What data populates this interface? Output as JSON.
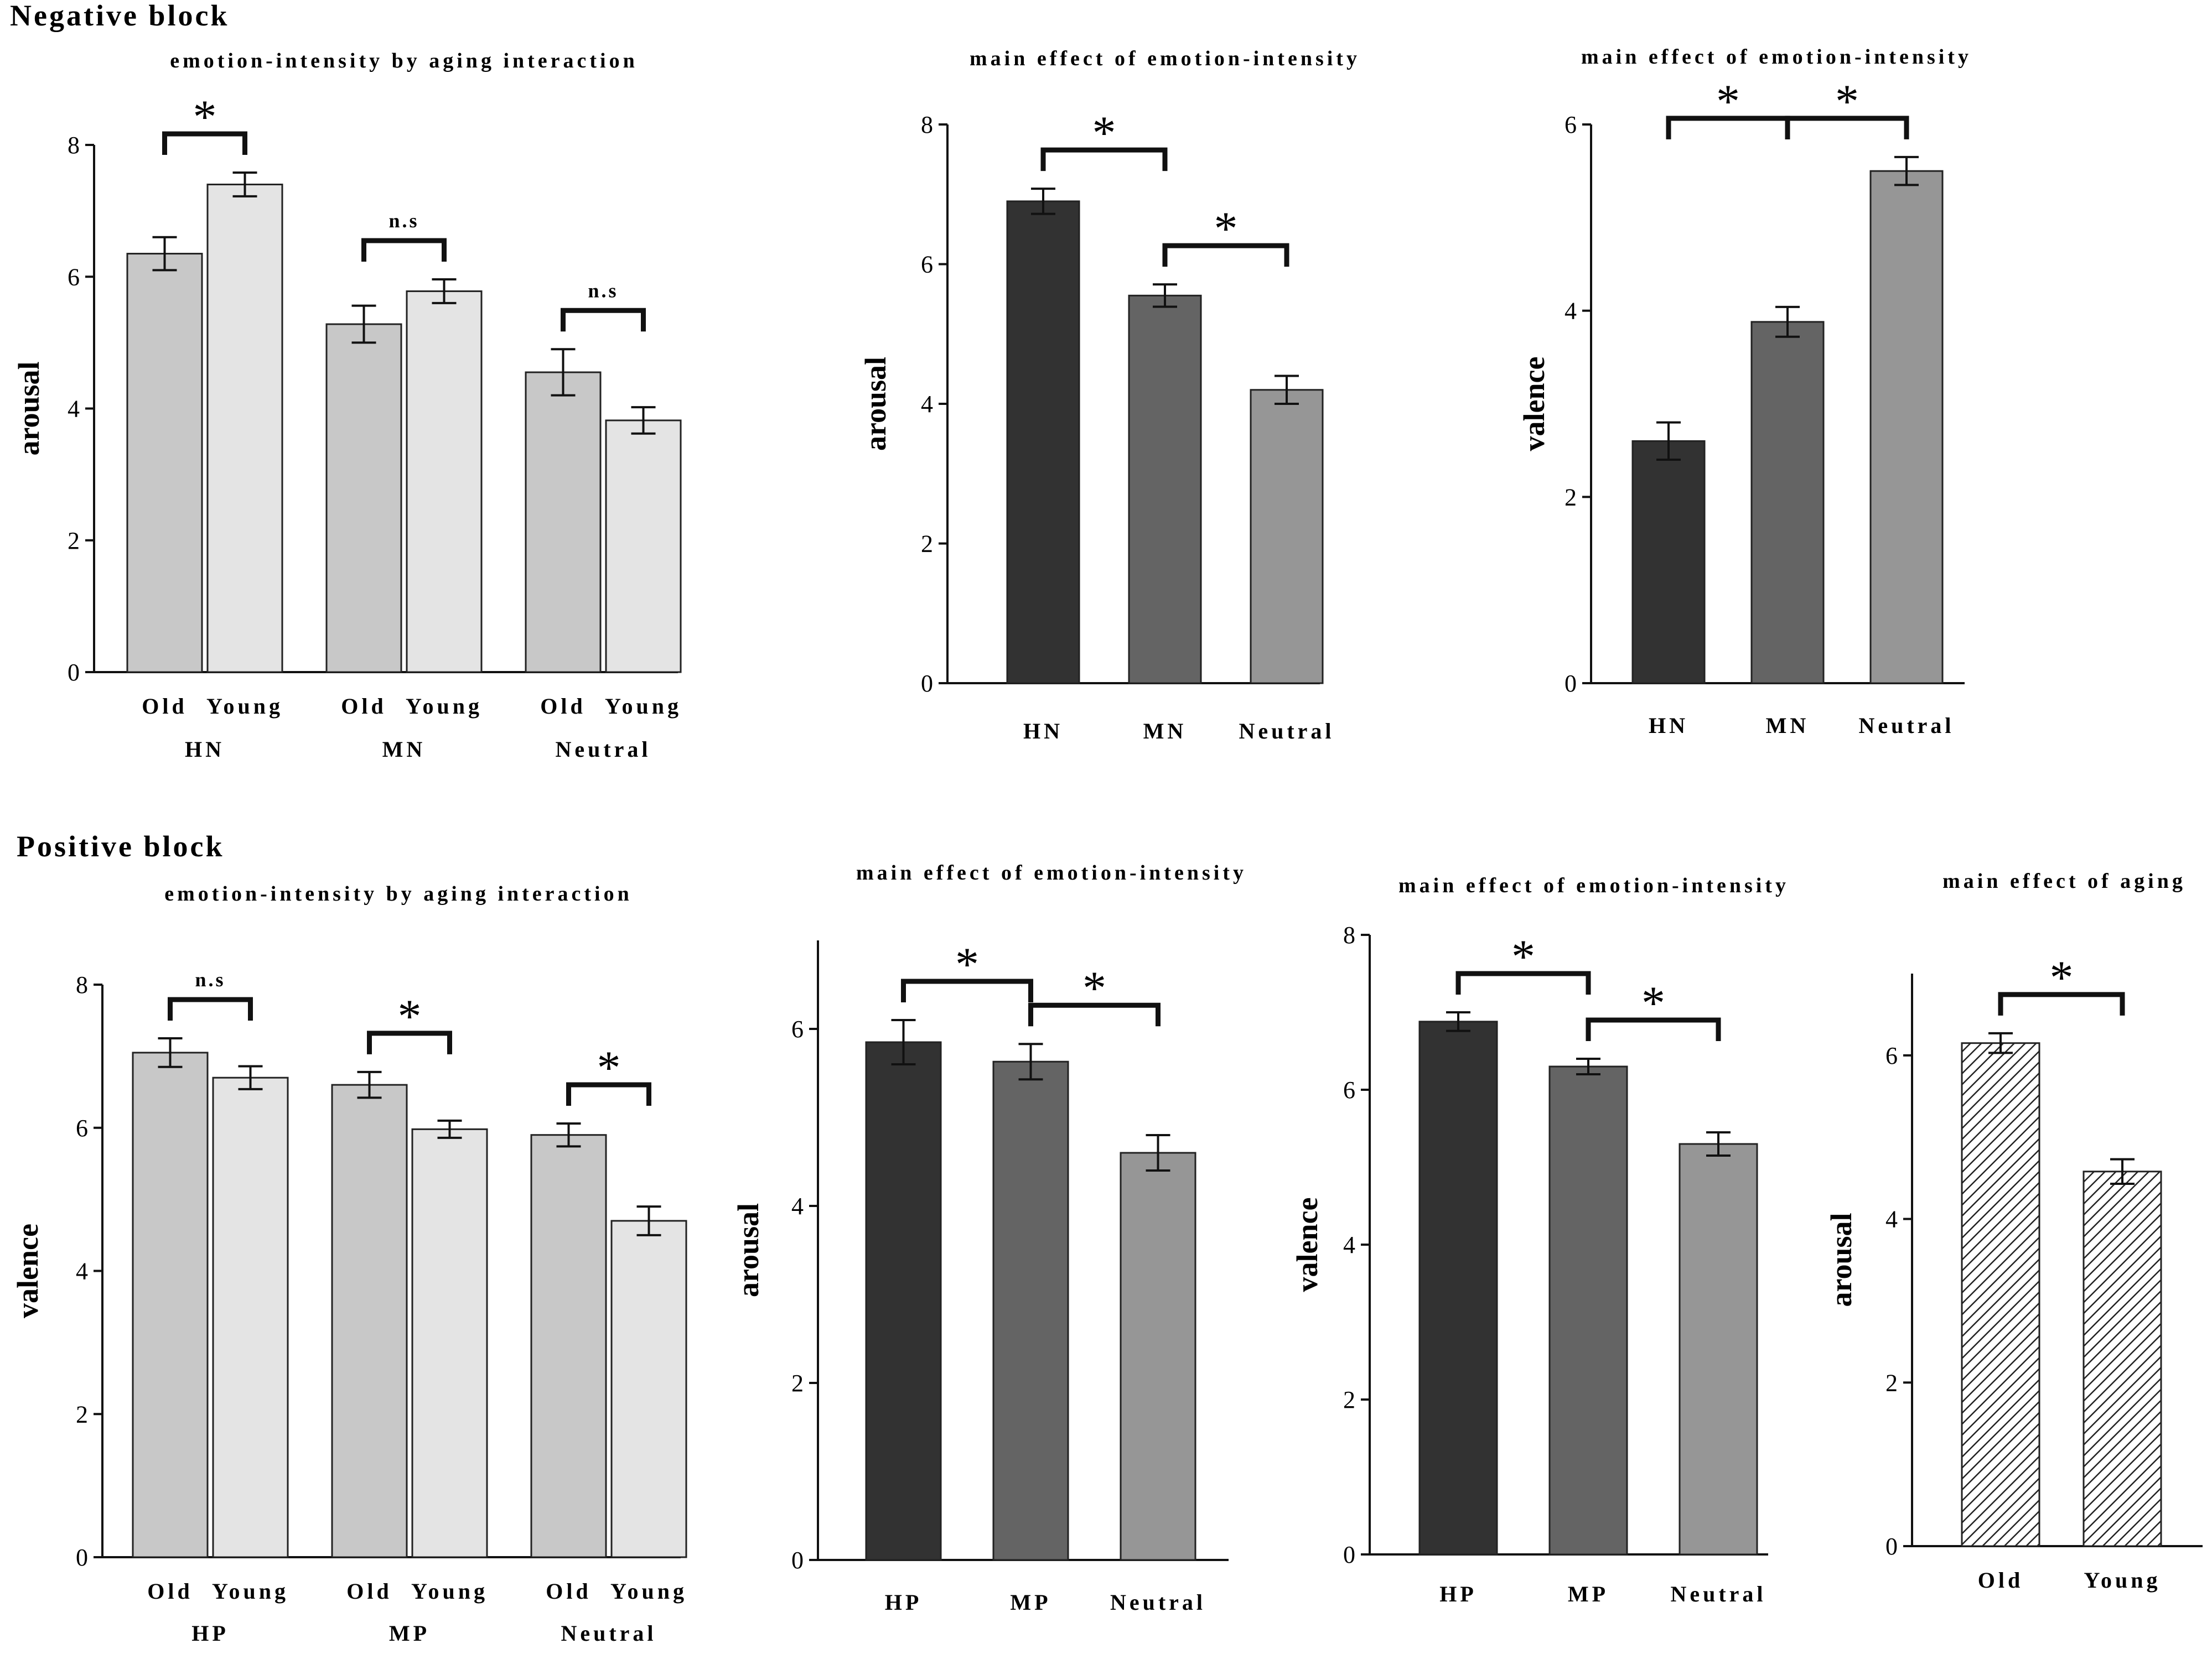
{
  "blocks": {
    "negative": "Negative block",
    "positive": "Positive block"
  },
  "colors": {
    "old": "#c8c8c8",
    "young": "#e4e4e4",
    "high": "#323232",
    "mid": "#646464",
    "neutral": "#969696",
    "stroke": "#222222"
  },
  "chart_data": [
    {
      "id": "neg-interaction",
      "type": "bar",
      "title": "emotion-intensity by aging interaction",
      "ylabel": "arousal",
      "ylim": [
        0,
        8
      ],
      "yticks": [
        0,
        2,
        4,
        6,
        8
      ],
      "groups": [
        "HN",
        "MN",
        "Neutral"
      ],
      "bars": [
        {
          "group": "HN",
          "label": "Old",
          "value": 6.35,
          "err": 0.25,
          "color": "old"
        },
        {
          "group": "HN",
          "label": "Young",
          "value": 7.4,
          "err": 0.18,
          "color": "young"
        },
        {
          "group": "MN",
          "label": "Old",
          "value": 5.28,
          "err": 0.28,
          "color": "old"
        },
        {
          "group": "MN",
          "label": "Young",
          "value": 5.78,
          "err": 0.18,
          "color": "young"
        },
        {
          "group": "Neutral",
          "label": "Old",
          "value": 4.55,
          "err": 0.35,
          "color": "old"
        },
        {
          "group": "Neutral",
          "label": "Young",
          "value": 3.82,
          "err": 0.2,
          "color": "young"
        }
      ],
      "comparisons": [
        {
          "from": 0,
          "to": 1,
          "label": "*"
        },
        {
          "from": 2,
          "to": 3,
          "label": "n.s"
        },
        {
          "from": 4,
          "to": 5,
          "label": "n.s"
        }
      ]
    },
    {
      "id": "neg-arousal",
      "type": "bar",
      "title": "main effect of emotion-intensity",
      "ylabel": "arousal",
      "ylim": [
        0,
        8
      ],
      "yticks": [
        0,
        2,
        4,
        6,
        8
      ],
      "bars": [
        {
          "label": "HN",
          "value": 6.9,
          "err": 0.18,
          "color": "high"
        },
        {
          "label": "MN",
          "value": 5.55,
          "err": 0.16,
          "color": "mid"
        },
        {
          "label": "Neutral",
          "value": 4.2,
          "err": 0.2,
          "color": "neutral"
        }
      ],
      "comparisons": [
        {
          "from": 0,
          "to": 1,
          "label": "*"
        },
        {
          "from": 1,
          "to": 2,
          "label": "*"
        }
      ]
    },
    {
      "id": "neg-valence",
      "type": "bar",
      "title": "main effect of emotion-intensity",
      "ylabel": "valence",
      "ylim": [
        0,
        6
      ],
      "yticks": [
        0,
        2,
        4,
        6
      ],
      "bars": [
        {
          "label": "HN",
          "value": 2.6,
          "err": 0.2,
          "color": "high"
        },
        {
          "label": "MN",
          "value": 3.88,
          "err": 0.16,
          "color": "mid"
        },
        {
          "label": "Neutral",
          "value": 5.5,
          "err": 0.15,
          "color": "neutral"
        }
      ],
      "comparisons": [
        {
          "from": 0,
          "to": 1,
          "label": "*"
        },
        {
          "from": 1,
          "to": 2,
          "label": "*"
        }
      ]
    },
    {
      "id": "pos-interaction",
      "type": "bar",
      "title": "emotion-intensity by aging interaction",
      "ylabel": "valence",
      "ylim": [
        0,
        8
      ],
      "yticks": [
        0,
        2,
        4,
        6,
        8
      ],
      "groups": [
        "HP",
        "MP",
        "Neutral"
      ],
      "bars": [
        {
          "group": "HP",
          "label": "Old",
          "value": 7.05,
          "err": 0.2,
          "color": "old"
        },
        {
          "group": "HP",
          "label": "Young",
          "value": 6.7,
          "err": 0.16,
          "color": "young"
        },
        {
          "group": "MP",
          "label": "Old",
          "value": 6.6,
          "err": 0.18,
          "color": "old"
        },
        {
          "group": "MP",
          "label": "Young",
          "value": 5.98,
          "err": 0.12,
          "color": "young"
        },
        {
          "group": "Neutral",
          "label": "Old",
          "value": 5.9,
          "err": 0.16,
          "color": "old"
        },
        {
          "group": "Neutral",
          "label": "Young",
          "value": 4.7,
          "err": 0.2,
          "color": "young"
        }
      ],
      "comparisons": [
        {
          "from": 0,
          "to": 1,
          "label": "n.s"
        },
        {
          "from": 2,
          "to": 3,
          "label": "*"
        },
        {
          "from": 4,
          "to": 5,
          "label": "*"
        }
      ]
    },
    {
      "id": "pos-arousal",
      "type": "bar",
      "title": "main effect of emotion-intensity",
      "ylabel": "arousal",
      "ylim": [
        0,
        7
      ],
      "yticks": [
        0,
        2,
        4,
        6
      ],
      "bars": [
        {
          "label": "HP",
          "value": 5.85,
          "err": 0.25,
          "color": "high"
        },
        {
          "label": "MP",
          "value": 5.63,
          "err": 0.2,
          "color": "mid"
        },
        {
          "label": "Neutral",
          "value": 4.6,
          "err": 0.2,
          "color": "neutral"
        }
      ],
      "comparisons": [
        {
          "from": 0,
          "to": 1,
          "label": "*"
        },
        {
          "from": 1,
          "to": 2,
          "label": "*"
        }
      ]
    },
    {
      "id": "pos-valence",
      "type": "bar",
      "title": "main effect of emotion-intensity",
      "ylabel": "valence",
      "ylim": [
        0,
        8
      ],
      "yticks": [
        0,
        2,
        4,
        6,
        8
      ],
      "bars": [
        {
          "label": "HP",
          "value": 6.88,
          "err": 0.12,
          "color": "high"
        },
        {
          "label": "MP",
          "value": 6.3,
          "err": 0.1,
          "color": "mid"
        },
        {
          "label": "Neutral",
          "value": 5.3,
          "err": 0.15,
          "color": "neutral"
        }
      ],
      "comparisons": [
        {
          "from": 0,
          "to": 1,
          "label": "*"
        },
        {
          "from": 1,
          "to": 2,
          "label": "*"
        }
      ]
    },
    {
      "id": "pos-aging",
      "type": "bar",
      "title": "main effect of aging",
      "ylabel": "arousal",
      "ylim": [
        0,
        7
      ],
      "yticks": [
        0,
        2,
        4,
        6
      ],
      "bars": [
        {
          "label": "Old",
          "value": 6.15,
          "err": 0.12,
          "color": "hatch"
        },
        {
          "label": "Young",
          "value": 4.58,
          "err": 0.15,
          "color": "hatch"
        }
      ],
      "comparisons": [
        {
          "from": 0,
          "to": 1,
          "label": "*"
        }
      ]
    }
  ]
}
